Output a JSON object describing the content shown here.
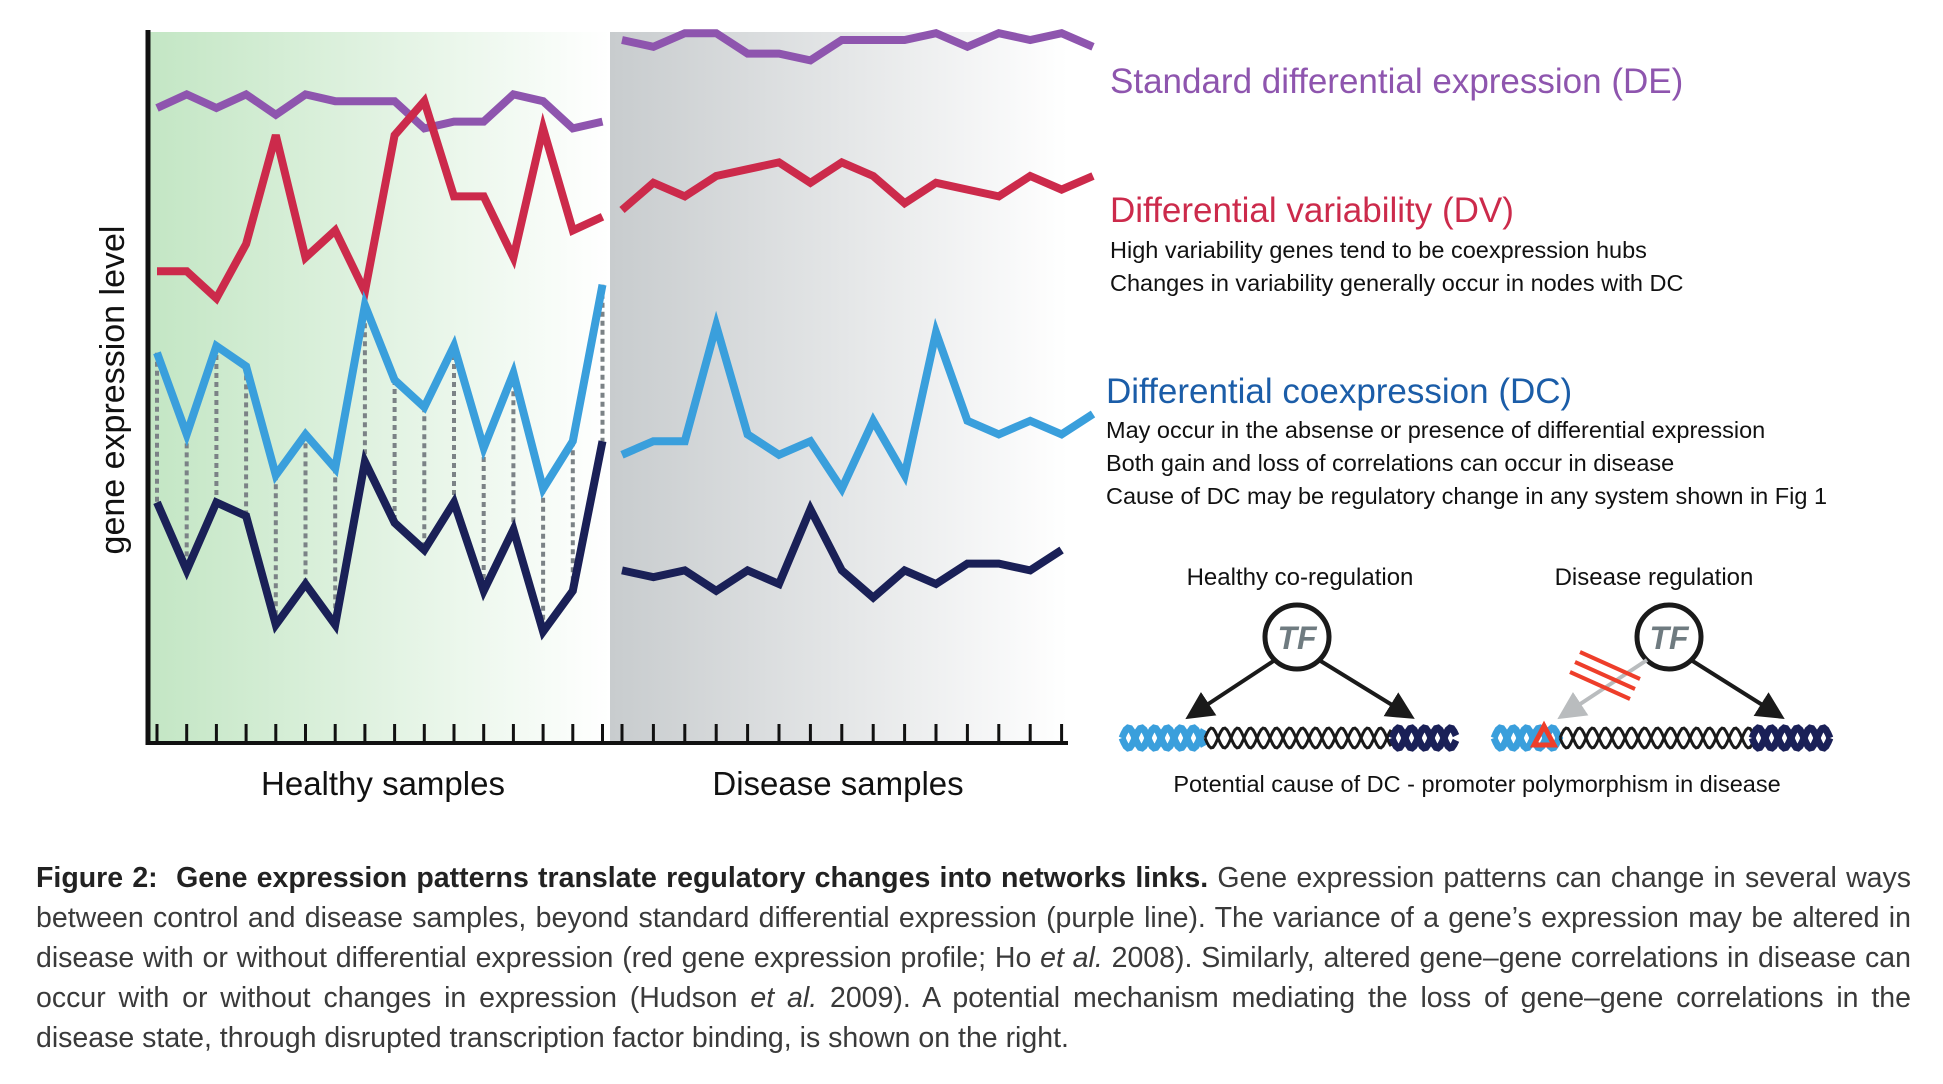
{
  "chart_data": {
    "type": "line",
    "ylabel": "gene expression level",
    "groups": [
      "Healthy samples",
      "Disease samples"
    ],
    "healthy_x": [
      0,
      1,
      2,
      3,
      4,
      5,
      6,
      7,
      8,
      9,
      10,
      11,
      12,
      13,
      14,
      15
    ],
    "disease_x": [
      0,
      1,
      2,
      3,
      4,
      5,
      6,
      7,
      8,
      9,
      10,
      11,
      12,
      13,
      14
    ],
    "series": [
      {
        "name": "Standard differential expression (DE)",
        "color": "#8e55ae",
        "healthy": [
          90,
          92,
          90,
          92,
          89,
          92,
          91,
          91,
          91,
          87,
          88,
          88,
          92,
          91,
          87,
          88
        ],
        "disease": [
          100,
          99,
          101,
          101,
          98,
          98,
          97,
          100,
          100,
          100,
          101,
          99,
          101,
          100,
          101,
          99
        ]
      },
      {
        "name": "Differential variability (DV)",
        "color": "#cc2a4b",
        "healthy": [
          66,
          66,
          62,
          70,
          86,
          68,
          72,
          63,
          86,
          91,
          77,
          77,
          68,
          87,
          72,
          74
        ],
        "disease": [
          75,
          79,
          77,
          80,
          81,
          82,
          79,
          82,
          80,
          76,
          79,
          78,
          77,
          80,
          78,
          80
        ]
      },
      {
        "name": "Differential coexpression (DC) gene 1",
        "color": "#3a9fdc",
        "healthy": [
          54,
          42,
          55,
          52,
          36,
          42,
          37,
          61,
          50,
          46,
          55,
          40,
          51,
          34,
          41,
          64
        ],
        "disease": [
          39,
          41,
          41,
          58,
          42,
          39,
          41,
          34,
          44,
          36,
          57,
          44,
          42,
          44,
          42,
          45
        ]
      },
      {
        "name": "Differential coexpression (DC) gene 2",
        "color": "#1a2057",
        "healthy": [
          32,
          22,
          32,
          30,
          14,
          20,
          14,
          38,
          29,
          25,
          32,
          19,
          28,
          13,
          19,
          41
        ],
        "disease": [
          22,
          21,
          22,
          19,
          22,
          20,
          31,
          22,
          18,
          22,
          20,
          23,
          23,
          22,
          25
        ]
      }
    ]
  },
  "legend": {
    "de_title": "Standard differential expression (DE)",
    "dv_title": "Differential variability (DV)",
    "dv_lines": [
      "High variability genes tend to be coexpression hubs",
      "Changes in variability generally occur in nodes with DC"
    ],
    "dc_title": "Differential coexpression (DC)",
    "dc_lines": [
      "May occur in the absense or presence of differential expression",
      "Both gain and loss of correlations can occur in disease",
      "Cause of DC may be regulatory change in any system shown in Fig 1"
    ]
  },
  "mechanism": {
    "healthy_label": "Healthy co-regulation",
    "disease_label": "Disease regulation",
    "tf_label": "TF",
    "footer": "Potential cause of DC - promoter polymorphism in disease"
  },
  "colors": {
    "de": "#8e55ae",
    "dv": "#cc2a4b",
    "dc_title": "#1b5da8",
    "gene1": "#3a9fdc",
    "gene2": "#1a2057",
    "healthy_bg": "#c3e6c4",
    "disease_bg": "#c8ccce",
    "mutation": "#ee3e2a"
  },
  "caption": {
    "label": "Figure 2:",
    "bold": "Gene expression patterns translate regulatory changes into networks links.",
    "t1": " Gene expression patterns can change in several ways between control and disease samples, beyond standard differential expression (purple line). The variance of a gene’s expression may be altered in disease with or without differential expression (red gene expression profile; Ho ",
    "etal1": "et al.",
    "t2": " 2008). Similarly, altered gene–gene correlations in disease can occur with or without changes in expression (Hudson ",
    "etal2": "et al.",
    "t3": " 2009). A potential mechanism mediating the loss of gene–gene correlations in the disease state, through disrupted transcription factor binding, is shown on the right."
  }
}
